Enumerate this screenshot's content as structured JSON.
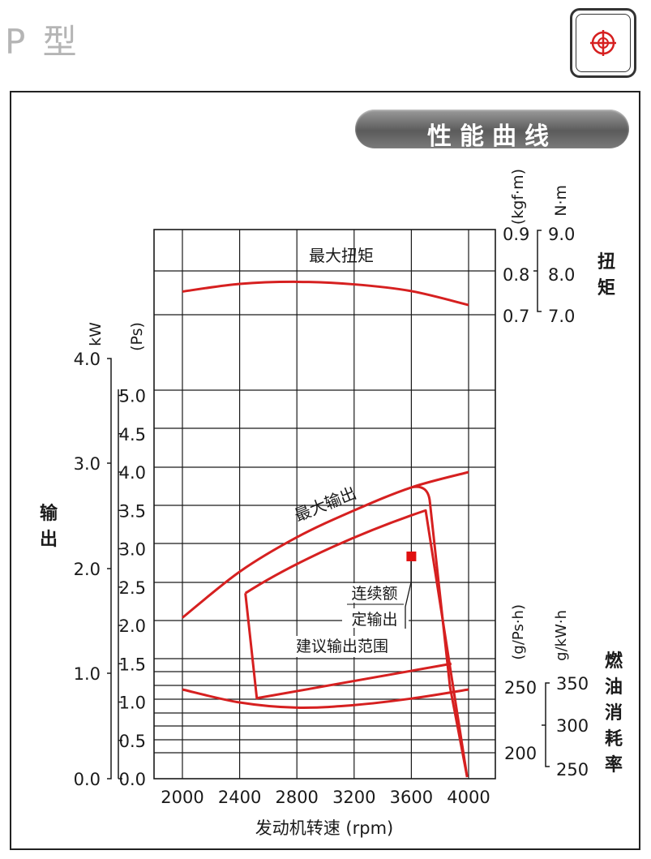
{
  "header": {
    "model": "P 型"
  },
  "colors": {
    "curve": "#d62020",
    "marker": "#e01010",
    "grid": "#1a1a1a",
    "banner": "#6a6a6a"
  },
  "chart_data": {
    "type": "line",
    "title": "性能曲线",
    "xlabel": "发动机转速 (rpm)",
    "x_ticks": [
      "2000",
      "2400",
      "2800",
      "3200",
      "3600",
      "4000"
    ],
    "xlim": [
      2000,
      4000
    ],
    "grid": true,
    "axes": {
      "torque": {
        "label": "扭矩",
        "unit_kgfm": "(kgf·m)",
        "unit_nm": "N·m",
        "ticks_kgfm": [
          "0.9",
          "0.8",
          "0.7"
        ],
        "ticks_nm": [
          "9.0",
          "8.0",
          "7.0"
        ],
        "range_kgfm": [
          0.7,
          0.9
        ]
      },
      "power": {
        "label": "输出",
        "unit_kw": "kW",
        "unit_ps": "(Ps)",
        "ticks_kw": [
          "4.0",
          "3.0",
          "2.0",
          "1.0",
          "0.0"
        ],
        "ticks_ps": [
          "5.0",
          "4.5",
          "4.0",
          "3.5",
          "3.0",
          "2.5",
          "2.0",
          "1.5",
          "1.0",
          "0.5",
          "0.0"
        ],
        "range_ps": [
          0,
          5.5
        ]
      },
      "fuel": {
        "label": "燃油消耗率",
        "unit_gps": "(g/Ps·h)",
        "unit_gkw": "g/kW·h",
        "ticks_gps": [
          "250",
          "200"
        ],
        "ticks_gkw": [
          "350",
          "300",
          "250"
        ]
      }
    },
    "series": [
      {
        "name": "最大扭矩",
        "axis": "torque_kgfm",
        "x": [
          2000,
          2400,
          2800,
          3200,
          3600,
          4000
        ],
        "values": [
          0.755,
          0.773,
          0.778,
          0.772,
          0.756,
          0.723
        ]
      },
      {
        "name": "最大输出",
        "axis": "power_ps",
        "x": [
          2000,
          2400,
          2800,
          3200,
          3600,
          4000
        ],
        "values": [
          2.1,
          2.7,
          3.15,
          3.5,
          3.8,
          4.0
        ]
      },
      {
        "name": "",
        "axis": "fuel_gps",
        "x": [
          2000,
          2400,
          2800,
          3200,
          3600,
          4000
        ],
        "values": [
          250,
          240,
          236,
          238,
          243,
          250
        ]
      }
    ],
    "marker": {
      "x": 3600,
      "y_ps": 2.9
    },
    "annotations": [
      "连续额",
      "定输出",
      "建议输出范围"
    ]
  }
}
